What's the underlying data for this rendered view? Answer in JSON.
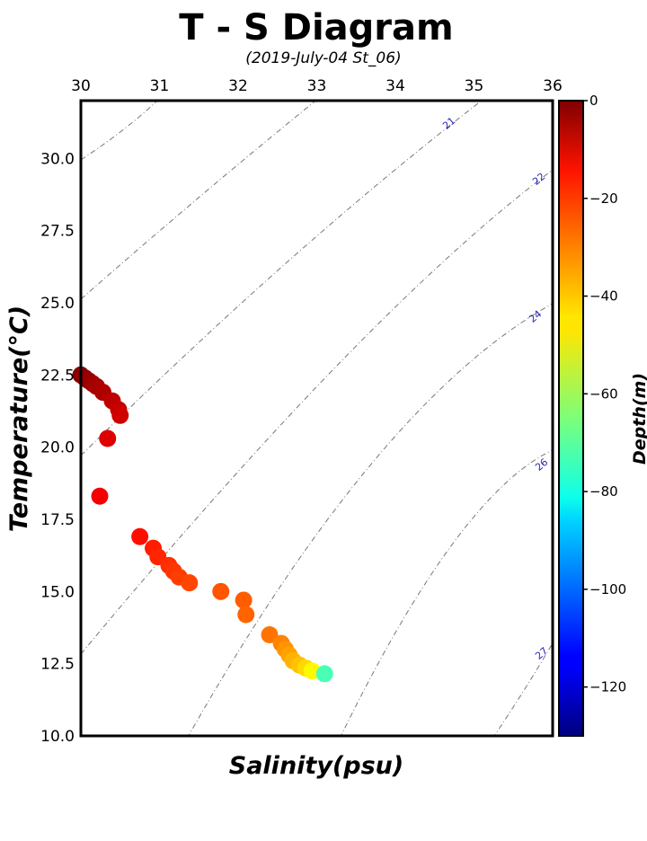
{
  "chart_data": {
    "type": "scatter",
    "title": "T - S Diagram",
    "subtitle": "(2019-July-04 St_06)",
    "xlabel": "Salinity(psu)",
    "ylabel": "Temperature(°C)",
    "xlim": [
      30,
      36
    ],
    "ylim": [
      10,
      32
    ],
    "xticks": [
      "30",
      "31",
      "32",
      "33",
      "34",
      "35",
      "36"
    ],
    "yticks": [
      "10.0",
      "12.5",
      "15.0",
      "17.5",
      "20.0",
      "22.5",
      "25.0",
      "27.5",
      "30.0"
    ],
    "colorbar": {
      "label": "Depth(m)",
      "range": [
        -130,
        0
      ],
      "ticks": [
        "0",
        "−20",
        "−40",
        "−60",
        "−80",
        "−100",
        "−120"
      ],
      "colormap": "jet"
    },
    "density_contours": {
      "color": "#777777",
      "label_color": "#1f1fb4",
      "labels": [
        "21",
        "22",
        "24",
        "26",
        "27"
      ]
    },
    "points": [
      {
        "s": 30.0,
        "t": 22.5,
        "d": -1
      },
      {
        "s": 30.05,
        "t": 22.4,
        "d": -2
      },
      {
        "s": 30.1,
        "t": 22.3,
        "d": -3
      },
      {
        "s": 30.15,
        "t": 22.2,
        "d": -4
      },
      {
        "s": 30.2,
        "t": 22.1,
        "d": -5
      },
      {
        "s": 30.28,
        "t": 21.9,
        "d": -6
      },
      {
        "s": 30.4,
        "t": 21.6,
        "d": -8
      },
      {
        "s": 30.48,
        "t": 21.3,
        "d": -9
      },
      {
        "s": 30.5,
        "t": 21.1,
        "d": -10
      },
      {
        "s": 30.34,
        "t": 20.3,
        "d": -12
      },
      {
        "s": 30.24,
        "t": 18.3,
        "d": -15
      },
      {
        "s": 30.75,
        "t": 16.9,
        "d": -18
      },
      {
        "s": 30.92,
        "t": 16.5,
        "d": -20
      },
      {
        "s": 30.98,
        "t": 16.2,
        "d": -21
      },
      {
        "s": 31.12,
        "t": 15.9,
        "d": -22
      },
      {
        "s": 31.18,
        "t": 15.7,
        "d": -23
      },
      {
        "s": 31.25,
        "t": 15.5,
        "d": -24
      },
      {
        "s": 31.38,
        "t": 15.3,
        "d": -25
      },
      {
        "s": 31.78,
        "t": 15.0,
        "d": -27
      },
      {
        "s": 32.07,
        "t": 14.7,
        "d": -28
      },
      {
        "s": 32.1,
        "t": 14.2,
        "d": -29
      },
      {
        "s": 32.4,
        "t": 13.5,
        "d": -31
      },
      {
        "s": 32.55,
        "t": 13.2,
        "d": -33
      },
      {
        "s": 32.6,
        "t": 13.0,
        "d": -35
      },
      {
        "s": 32.65,
        "t": 12.8,
        "d": -37
      },
      {
        "s": 32.7,
        "t": 12.6,
        "d": -39
      },
      {
        "s": 32.78,
        "t": 12.45,
        "d": -41
      },
      {
        "s": 32.86,
        "t": 12.35,
        "d": -44
      },
      {
        "s": 32.94,
        "t": 12.25,
        "d": -48
      },
      {
        "s": 33.1,
        "t": 12.15,
        "d": -72
      }
    ]
  }
}
